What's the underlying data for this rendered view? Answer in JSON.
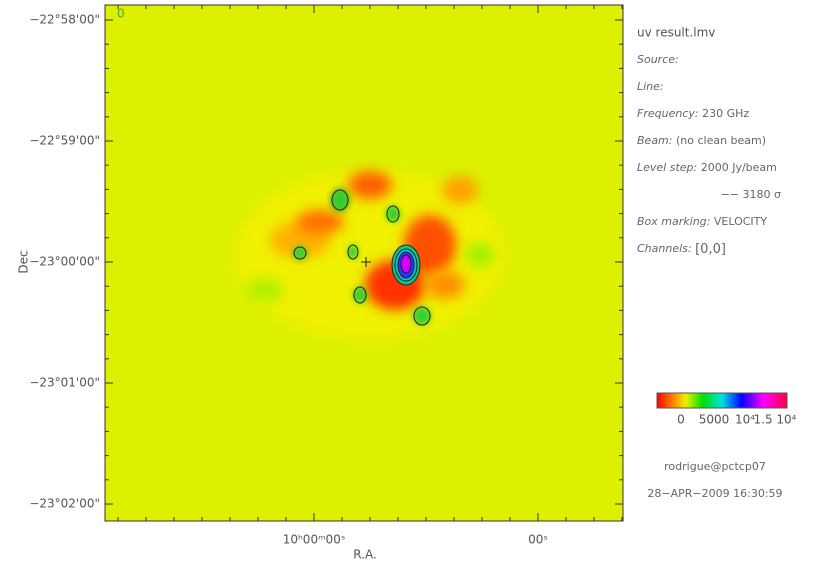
{
  "plot": {
    "corner_label": "0",
    "y_axis": {
      "label": "Dec",
      "ticks": [
        "−22°58'00\"",
        "−22°59'00\"",
        "−23°00'00\"",
        "−23°01'00\"",
        "−23°02'00\""
      ]
    },
    "x_axis": {
      "label": "R.A.",
      "ticks": [
        "10ʰ00ᵐ00ˢ",
        "00ˢ"
      ]
    }
  },
  "info": {
    "file": "uv result.lmv",
    "source": "Source:",
    "line": "Line:",
    "frequency_key": "Frequency:",
    "frequency_value": "230 GHz",
    "beam_key": "Beam:",
    "beam_value": "(no clean beam)",
    "level_key": "Level step:",
    "level_value": "2000 Jy/beam",
    "sigma": "−−  3180 σ",
    "box_key": "Box marking:",
    "box_value": "VELOCITY",
    "channels_key": "Channels:",
    "channels_value": "[0,0]",
    "colorbar_ticks": [
      "0",
      "5000",
      "10⁴",
      "1.5 10⁴"
    ],
    "user": "rodrigue@pctcp07",
    "date": "28−APR−2009 16:30:59"
  }
}
